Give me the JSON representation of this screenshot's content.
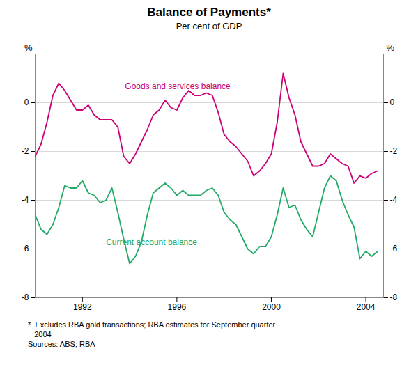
{
  "chart_data": {
    "type": "line",
    "title": "Balance of Payments*",
    "subtitle": "Per cent of GDP",
    "ylabel": "%",
    "y2label": "%",
    "xlim": [
      1990.0,
      2004.75
    ],
    "xticks": [
      1992,
      1996,
      2000,
      2004
    ],
    "ylim": [
      -8,
      2
    ],
    "yticks": [
      -8,
      -6,
      -4,
      -2,
      0
    ],
    "y2lim": [
      -8,
      2
    ],
    "y2ticks": [
      -8,
      -6,
      -4,
      -2,
      0
    ],
    "grid": true,
    "x": [
      1990.0,
      1990.25,
      1990.5,
      1990.75,
      1991.0,
      1991.25,
      1991.5,
      1991.75,
      1992.0,
      1992.25,
      1992.5,
      1992.75,
      1993.0,
      1993.25,
      1993.5,
      1993.75,
      1994.0,
      1994.25,
      1994.5,
      1994.75,
      1995.0,
      1995.25,
      1995.5,
      1995.75,
      1996.0,
      1996.25,
      1996.5,
      1996.75,
      1997.0,
      1997.25,
      1997.5,
      1997.75,
      1998.0,
      1998.25,
      1998.5,
      1998.75,
      1999.0,
      1999.25,
      1999.5,
      1999.75,
      2000.0,
      2000.25,
      2000.5,
      2000.75,
      2001.0,
      2001.25,
      2001.5,
      2001.75,
      2002.0,
      2002.25,
      2002.5,
      2002.75,
      2003.0,
      2003.25,
      2003.5,
      2003.75,
      2004.0,
      2004.25,
      2004.5
    ],
    "series": [
      {
        "name": "Goods and services balance",
        "color": "#cc0077",
        "values": [
          -2.2,
          -1.7,
          -0.8,
          0.3,
          0.8,
          0.5,
          0.1,
          -0.3,
          -0.3,
          -0.1,
          -0.5,
          -0.7,
          -0.7,
          -0.7,
          -1.0,
          -2.2,
          -2.5,
          -2.1,
          -1.6,
          -1.1,
          -0.5,
          -0.3,
          0.1,
          -0.2,
          -0.3,
          0.2,
          0.5,
          0.3,
          0.3,
          0.4,
          0.3,
          -0.4,
          -1.3,
          -1.6,
          -1.8,
          -2.1,
          -2.4,
          -3.0,
          -2.8,
          -2.5,
          -2.1,
          -0.8,
          1.2,
          0.2,
          -0.5,
          -1.6,
          -2.1,
          -2.6,
          -2.6,
          -2.5,
          -2.1,
          -2.3,
          -2.5,
          -2.6,
          -3.3,
          -3.0,
          -3.1,
          -2.9,
          -2.8
        ]
      },
      {
        "name": "Current account balance",
        "color": "#22aa66",
        "values": [
          -4.6,
          -5.2,
          -5.4,
          -5.0,
          -4.3,
          -3.4,
          -3.5,
          -3.5,
          -3.2,
          -3.7,
          -3.8,
          -4.1,
          -4.0,
          -3.5,
          -4.5,
          -5.6,
          -6.6,
          -6.3,
          -5.7,
          -4.6,
          -3.7,
          -3.5,
          -3.3,
          -3.5,
          -3.8,
          -3.6,
          -3.8,
          -3.8,
          -3.8,
          -3.6,
          -3.5,
          -3.8,
          -4.5,
          -4.8,
          -5.0,
          -5.5,
          -6.0,
          -6.2,
          -5.9,
          -5.9,
          -5.5,
          -4.6,
          -3.5,
          -4.3,
          -4.2,
          -4.8,
          -5.2,
          -5.5,
          -4.5,
          -3.5,
          -3.0,
          -3.2,
          -4.0,
          -4.6,
          -5.1,
          -6.4,
          -6.1,
          -6.3,
          -6.1
        ]
      }
    ],
    "annotations": [
      {
        "text": "Goods and services balance",
        "x": 1993.8,
        "y": 0.55,
        "color": "#cc0077"
      },
      {
        "text": "Current account balance",
        "x": 1993.0,
        "y": -5.85,
        "color": "#22aa66"
      }
    ],
    "footnotes": [
      "*  Excludes RBA gold transactions; RBA estimates for September quarter",
      "   2004",
      "Sources: ABS; RBA"
    ]
  }
}
